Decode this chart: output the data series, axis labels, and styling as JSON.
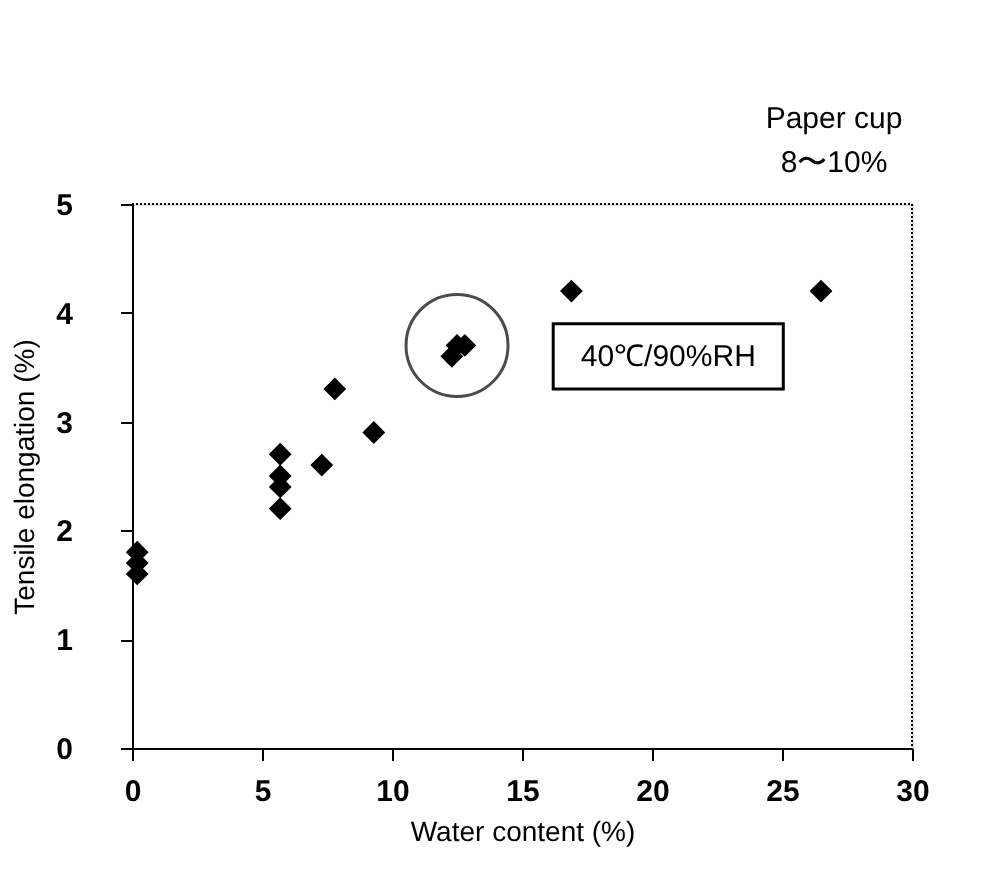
{
  "chart_data": {
    "type": "scatter",
    "xlabel": "Water content (%)",
    "ylabel": "Tensile elongation (%)",
    "x": [
      0.2,
      0.2,
      0.2,
      5.7,
      5.7,
      5.7,
      5.7,
      7.3,
      7.8,
      9.3,
      12.3,
      12.5,
      12.8,
      16.9,
      26.5
    ],
    "values": [
      1.8,
      1.7,
      1.6,
      2.7,
      2.5,
      2.4,
      2.2,
      2.6,
      3.3,
      2.9,
      3.6,
      3.7,
      3.7,
      4.2,
      4.2
    ],
    "color": "#000000",
    "marker": "diamond",
    "xlim": [
      0,
      30
    ],
    "xticks": [
      0,
      5,
      10,
      15,
      20,
      25,
      30
    ],
    "ylim": [
      0,
      5
    ],
    "yticks": [
      0,
      1,
      2,
      3,
      4,
      5
    ],
    "grid": false,
    "annotations": [
      "Paper cup\n8〜10%",
      "40℃/90%RH"
    ]
  }
}
